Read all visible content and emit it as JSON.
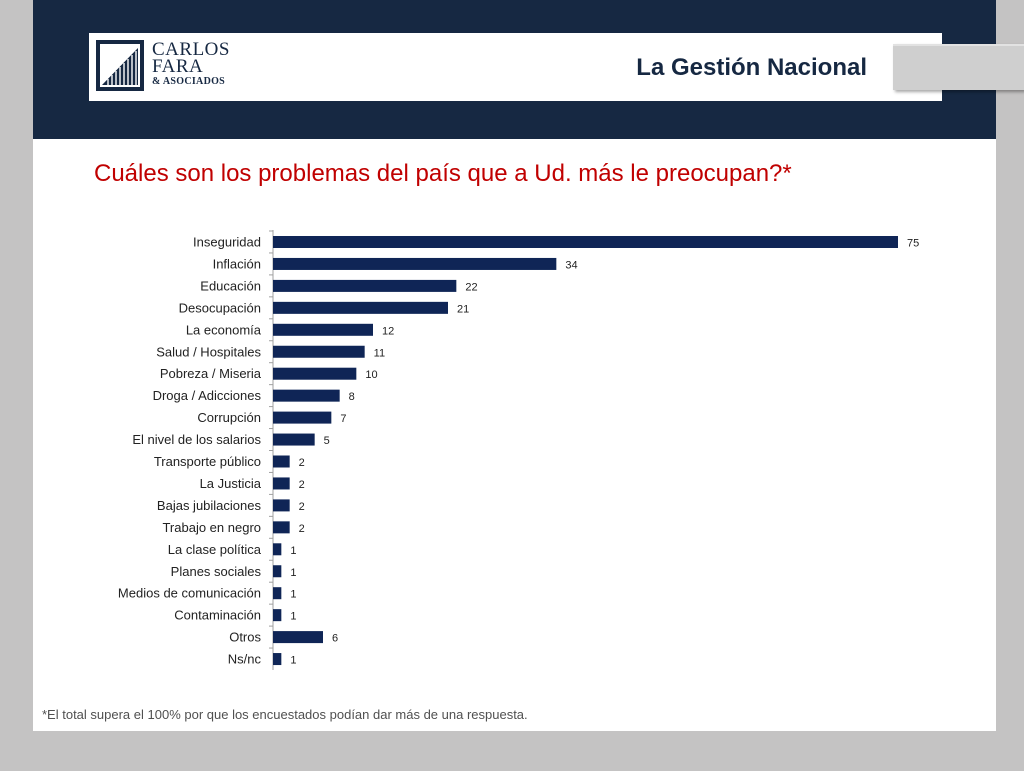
{
  "header": {
    "title": "La Gestión Nacional",
    "logo": {
      "line1": "CARLOS",
      "line2": "FARA",
      "line3": "& ASOCIADOS",
      "icon": "building-logo-icon"
    }
  },
  "question": "Cuáles son los problemas del país que a Ud. más le preocupan?*",
  "footnote": "*El total supera el 100% por que  los encuestados podían dar más de una respuesta.",
  "colors": {
    "navy": "#162842",
    "bar": "#0f2556",
    "question": "#c00000"
  },
  "chart_data": {
    "type": "bar",
    "orientation": "horizontal",
    "categories": [
      "Inseguridad",
      "Inflación",
      "Educación",
      "Desocupación",
      "La economía",
      "Salud / Hospitales",
      "Pobreza / Miseria",
      "Droga / Adicciones",
      "Corrupción",
      "El nivel de los salarios",
      "Transporte público",
      "La Justicia",
      "Bajas jubilaciones",
      "Trabajo en negro",
      "La clase política",
      "Planes sociales",
      "Medios de comunicación",
      "Contaminación",
      "Otros",
      "Ns/nc"
    ],
    "values": [
      75,
      34,
      22,
      21,
      12,
      11,
      10,
      8,
      7,
      5,
      2,
      2,
      2,
      2,
      1,
      1,
      1,
      1,
      6,
      1
    ],
    "data_labels": true,
    "grid": false,
    "legend": "none"
  }
}
